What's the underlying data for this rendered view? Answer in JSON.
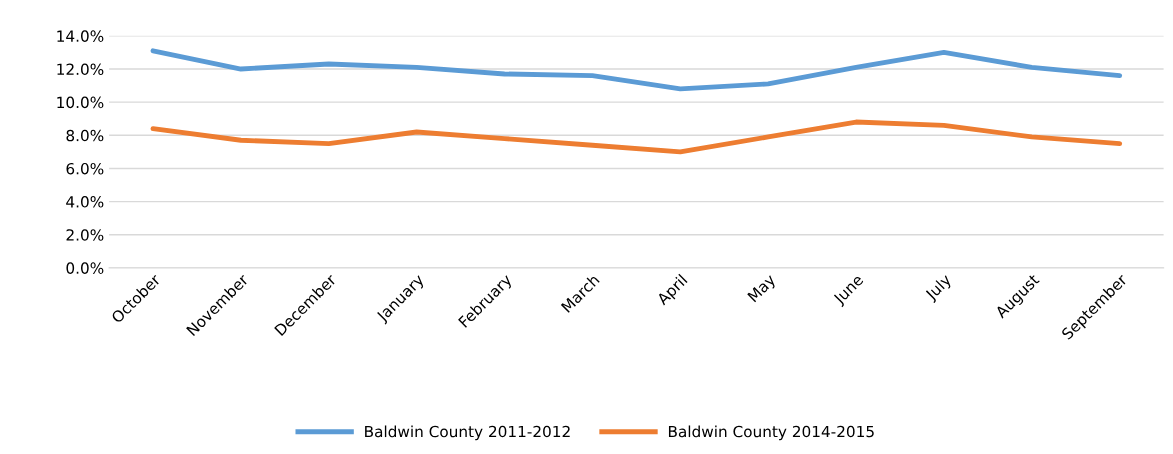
{
  "chart_data": {
    "type": "line",
    "categories": [
      "October",
      "November",
      "December",
      "January",
      "February",
      "March",
      "April",
      "May",
      "June",
      "July",
      "August",
      "September"
    ],
    "series": [
      {
        "name": "Baldwin County 2011-2012",
        "color": "#5b9bd5",
        "values": [
          13.1,
          12.0,
          12.3,
          12.1,
          11.7,
          11.6,
          10.8,
          11.1,
          12.1,
          13.0,
          12.1,
          11.6
        ]
      },
      {
        "name": "Baldwin County 2014-2015",
        "color": "#ed7d31",
        "values": [
          8.4,
          7.7,
          7.5,
          8.2,
          7.8,
          7.4,
          7.0,
          7.9,
          8.8,
          8.6,
          7.9,
          7.5
        ]
      }
    ],
    "ylim": [
      0,
      14
    ],
    "yticks": [
      {
        "value": 0,
        "label": "0.0%"
      },
      {
        "value": 2,
        "label": "2.0%"
      },
      {
        "value": 4,
        "label": "4.0%"
      },
      {
        "value": 6,
        "label": "6.0%"
      },
      {
        "value": 8,
        "label": "8.0%"
      },
      {
        "value": 10,
        "label": "10.0%"
      },
      {
        "value": 12,
        "label": "12.0%"
      },
      {
        "value": 14,
        "label": "14.0%"
      }
    ],
    "grid": "y",
    "legend": "bottom",
    "marker": "none",
    "line_style": "solid"
  }
}
